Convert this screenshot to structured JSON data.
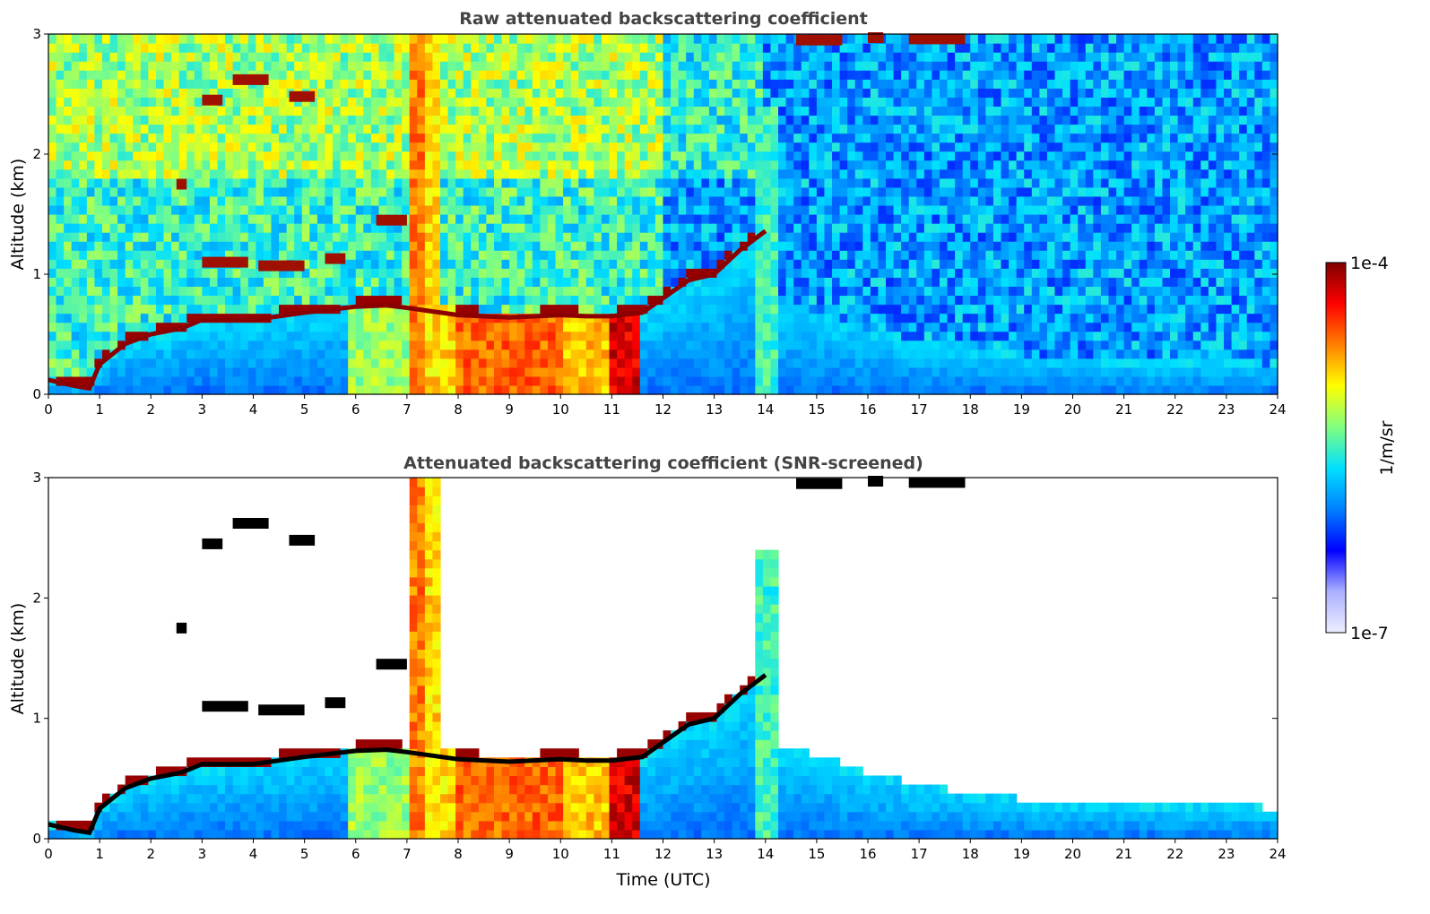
{
  "chart_data": [
    {
      "type": "heatmap",
      "title": "Raw attenuated backscattering coefficient",
      "xlabel": "",
      "ylabel": "Altitude (km)",
      "xlim": [
        0,
        24
      ],
      "ylim": [
        0,
        3
      ],
      "xticks": [
        "0",
        "1",
        "2",
        "3",
        "4",
        "5",
        "6",
        "7",
        "8",
        "9",
        "10",
        "11",
        "12",
        "13",
        "14",
        "15",
        "16",
        "17",
        "18",
        "19",
        "20",
        "21",
        "22",
        "23",
        "24"
      ],
      "yticks": [
        "0",
        "1",
        "2",
        "3"
      ],
      "screened": false,
      "cloud_base_km": [
        [
          0.0,
          0.12
        ],
        [
          0.5,
          0.07
        ],
        [
          0.8,
          0.05
        ],
        [
          1.0,
          0.25
        ],
        [
          1.5,
          0.42
        ],
        [
          2.0,
          0.5
        ],
        [
          2.6,
          0.55
        ],
        [
          3.0,
          0.62
        ],
        [
          4.0,
          0.62
        ],
        [
          5.0,
          0.68
        ],
        [
          6.0,
          0.73
        ],
        [
          6.6,
          0.74
        ],
        [
          7.0,
          0.72
        ],
        [
          8.0,
          0.66
        ],
        [
          9.0,
          0.64
        ],
        [
          10.0,
          0.66
        ],
        [
          10.5,
          0.65
        ],
        [
          11.0,
          0.65
        ],
        [
          11.6,
          0.68
        ],
        [
          12.0,
          0.8
        ],
        [
          12.5,
          0.95
        ],
        [
          13.0,
          1.0
        ],
        [
          13.5,
          1.2
        ],
        [
          14.0,
          1.36
        ]
      ],
      "aerosol_top_km": [
        [
          14.5,
          0.75
        ],
        [
          15.0,
          0.7
        ],
        [
          16.0,
          0.55
        ],
        [
          17.0,
          0.45
        ],
        [
          18.0,
          0.38
        ],
        [
          19.0,
          0.33
        ],
        [
          20.0,
          0.3
        ],
        [
          21.0,
          0.28
        ],
        [
          22.0,
          0.27
        ],
        [
          23.0,
          0.27
        ],
        [
          24.0,
          0.26
        ]
      ],
      "cloud_patches": [
        {
          "x": [
            2.5,
            2.7
          ],
          "alt": 1.75
        },
        {
          "x": [
            3.0,
            3.4
          ],
          "alt": 2.45
        },
        {
          "x": [
            3.6,
            4.3
          ],
          "alt": 2.62
        },
        {
          "x": [
            4.7,
            5.2
          ],
          "alt": 2.48
        },
        {
          "x": [
            3.0,
            3.9
          ],
          "alt": 1.1
        },
        {
          "x": [
            4.1,
            5.0
          ],
          "alt": 1.07
        },
        {
          "x": [
            5.4,
            5.8
          ],
          "alt": 1.13
        },
        {
          "x": [
            6.4,
            7.0
          ],
          "alt": 1.45
        },
        {
          "x": [
            14.6,
            15.5
          ],
          "alt": 2.95
        },
        {
          "x": [
            16.0,
            16.3
          ],
          "alt": 2.97
        },
        {
          "x": [
            16.8,
            17.9
          ],
          "alt": 2.96
        }
      ],
      "plumes": [
        {
          "x": [
            5.9,
            7.0
          ],
          "top": 0.75,
          "level": 0.58
        },
        {
          "x": [
            7.0,
            7.4
          ],
          "top": 3.0,
          "level": 0.78
        },
        {
          "x": [
            7.4,
            7.6
          ],
          "top": 3.0,
          "level": 0.7
        },
        {
          "x": [
            7.6,
            8.0
          ],
          "top": 0.72,
          "level": 0.7
        },
        {
          "x": [
            8.0,
            10.0
          ],
          "top": 0.66,
          "level": 0.8
        },
        {
          "x": [
            10.0,
            11.0
          ],
          "top": 0.65,
          "level": 0.72
        },
        {
          "x": [
            11.0,
            11.6
          ],
          "top": 0.65,
          "level": 0.92
        },
        {
          "x": [
            13.8,
            14.2
          ],
          "top": 2.4,
          "level": 0.5
        }
      ]
    },
    {
      "type": "heatmap",
      "title": "Attenuated backscattering coefficient (SNR-screened)",
      "xlabel": "Time (UTC)",
      "ylabel": "Altitude (km)",
      "xlim": [
        0,
        24
      ],
      "ylim": [
        0,
        3
      ],
      "xticks": [
        "0",
        "1",
        "2",
        "3",
        "4",
        "5",
        "6",
        "7",
        "8",
        "9",
        "10",
        "11",
        "12",
        "13",
        "14",
        "15",
        "16",
        "17",
        "18",
        "19",
        "20",
        "21",
        "22",
        "23",
        "24"
      ],
      "yticks": [
        "0",
        "1",
        "2",
        "3"
      ],
      "screened": true,
      "cloud_base_km": [
        [
          0.0,
          0.12
        ],
        [
          0.5,
          0.07
        ],
        [
          0.8,
          0.05
        ],
        [
          1.0,
          0.25
        ],
        [
          1.5,
          0.42
        ],
        [
          2.0,
          0.5
        ],
        [
          2.6,
          0.55
        ],
        [
          3.0,
          0.62
        ],
        [
          4.0,
          0.62
        ],
        [
          5.0,
          0.68
        ],
        [
          6.0,
          0.73
        ],
        [
          6.6,
          0.74
        ],
        [
          7.0,
          0.72
        ],
        [
          8.0,
          0.66
        ],
        [
          9.0,
          0.64
        ],
        [
          10.0,
          0.66
        ],
        [
          10.5,
          0.65
        ],
        [
          11.0,
          0.65
        ],
        [
          11.6,
          0.68
        ],
        [
          12.0,
          0.8
        ],
        [
          12.5,
          0.95
        ],
        [
          13.0,
          1.0
        ],
        [
          13.5,
          1.2
        ],
        [
          14.0,
          1.36
        ]
      ],
      "aerosol_top_km": [
        [
          14.5,
          0.75
        ],
        [
          15.0,
          0.7
        ],
        [
          16.0,
          0.55
        ],
        [
          17.0,
          0.45
        ],
        [
          18.0,
          0.38
        ],
        [
          19.0,
          0.33
        ],
        [
          20.0,
          0.3
        ],
        [
          21.0,
          0.28
        ],
        [
          22.0,
          0.27
        ],
        [
          23.0,
          0.27
        ],
        [
          24.0,
          0.26
        ]
      ],
      "cloud_patches": [
        {
          "x": [
            2.5,
            2.7
          ],
          "alt": 1.75
        },
        {
          "x": [
            3.0,
            3.4
          ],
          "alt": 2.45
        },
        {
          "x": [
            3.6,
            4.3
          ],
          "alt": 2.62
        },
        {
          "x": [
            4.7,
            5.2
          ],
          "alt": 2.48
        },
        {
          "x": [
            3.0,
            3.9
          ],
          "alt": 1.1
        },
        {
          "x": [
            4.1,
            5.0
          ],
          "alt": 1.07
        },
        {
          "x": [
            5.4,
            5.8
          ],
          "alt": 1.13
        },
        {
          "x": [
            6.4,
            7.0
          ],
          "alt": 1.45
        },
        {
          "x": [
            14.6,
            15.5
          ],
          "alt": 2.95
        },
        {
          "x": [
            16.0,
            16.3
          ],
          "alt": 2.97
        },
        {
          "x": [
            16.8,
            17.9
          ],
          "alt": 2.96
        }
      ],
      "plumes": [
        {
          "x": [
            5.9,
            7.0
          ],
          "top": 0.75,
          "level": 0.58
        },
        {
          "x": [
            7.0,
            7.4
          ],
          "top": 3.0,
          "level": 0.78
        },
        {
          "x": [
            7.4,
            7.6
          ],
          "top": 3.0,
          "level": 0.7
        },
        {
          "x": [
            7.6,
            8.0
          ],
          "top": 0.72,
          "level": 0.7
        },
        {
          "x": [
            8.0,
            10.0
          ],
          "top": 0.66,
          "level": 0.8
        },
        {
          "x": [
            10.0,
            11.0
          ],
          "top": 0.65,
          "level": 0.72
        },
        {
          "x": [
            11.0,
            11.6
          ],
          "top": 0.65,
          "level": 0.92
        },
        {
          "x": [
            13.8,
            14.2
          ],
          "top": 2.4,
          "level": 0.5
        }
      ]
    }
  ],
  "colorbar": {
    "label": "1/m/sr",
    "max_label": "1e-4",
    "min_label": "1e-7",
    "scale": "log",
    "colormap": "jet",
    "colors": [
      "#eeeeff",
      "#aab0ff",
      "#0000ff",
      "#0080ff",
      "#00e0ff",
      "#80ff80",
      "#ffff00",
      "#ff8000",
      "#ff0000",
      "#800000"
    ]
  }
}
